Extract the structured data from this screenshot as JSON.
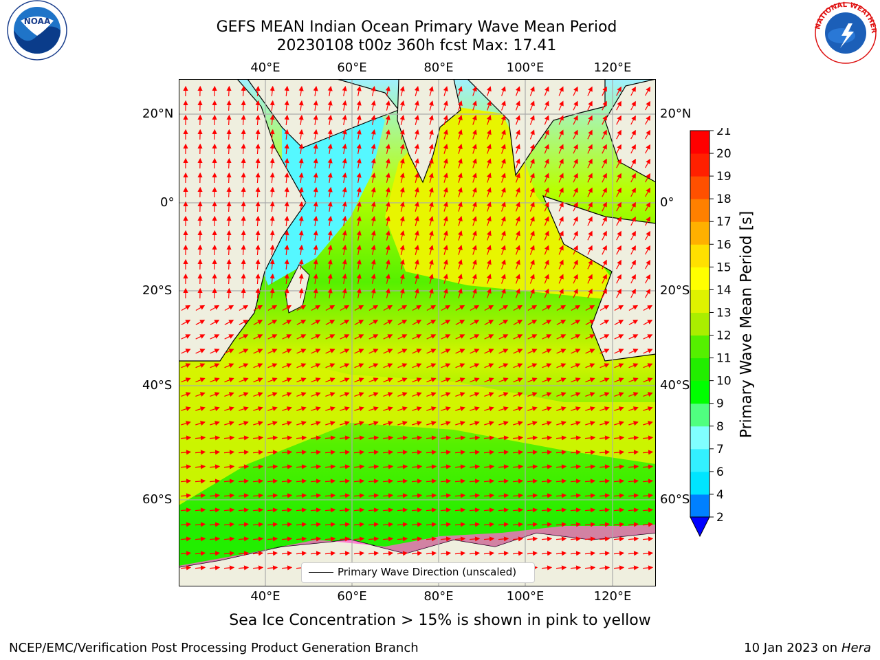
{
  "header": {
    "title_line1": "GEFS MEAN Indian Ocean Primary Wave Mean Period",
    "title_line2": "20230108 t00z 360h fcst   Max: 17.41"
  },
  "map": {
    "lon_labels": [
      "40°E",
      "60°E",
      "80°E",
      "100°E",
      "120°E"
    ],
    "lat_labels": [
      "20°N",
      "0°",
      "20°S",
      "40°S",
      "60°S"
    ],
    "legend_label": "Primary Wave Direction (unscaled)",
    "arrow_color": "#ff0000",
    "land_color": "#efefdf",
    "ice_note": "Sea Ice Concentration > 15% is shown in pink to yellow"
  },
  "colorbar": {
    "label": "Primary Wave Mean Period [s]",
    "ticks": [
      "2",
      "4",
      "6",
      "7",
      "8",
      "9",
      "10",
      "11",
      "12",
      "13",
      "14",
      "15",
      "16",
      "17",
      "18",
      "19",
      "20",
      "21"
    ],
    "colors": [
      "#0080ff",
      "#00e5ff",
      "#33f0ff",
      "#80ffff",
      "#50ff80",
      "#00ff00",
      "#22ee00",
      "#55f000",
      "#aaee00",
      "#dff200",
      "#ffff00",
      "#ffe000",
      "#ffb000",
      "#ff8000",
      "#ff5000",
      "#ff2000",
      "#ff0000"
    ],
    "underflow_color": "#0000ff"
  },
  "footer": {
    "credit_left": "NCEP/EMC/Verification Post Processing Product Generation Branch",
    "credit_date": "10 Jan 2023 on ",
    "credit_machine": "Hera"
  },
  "logos": {
    "noaa_text": "NOAA",
    "nws_text": "NATIONAL WEATHER SERVICE"
  }
}
